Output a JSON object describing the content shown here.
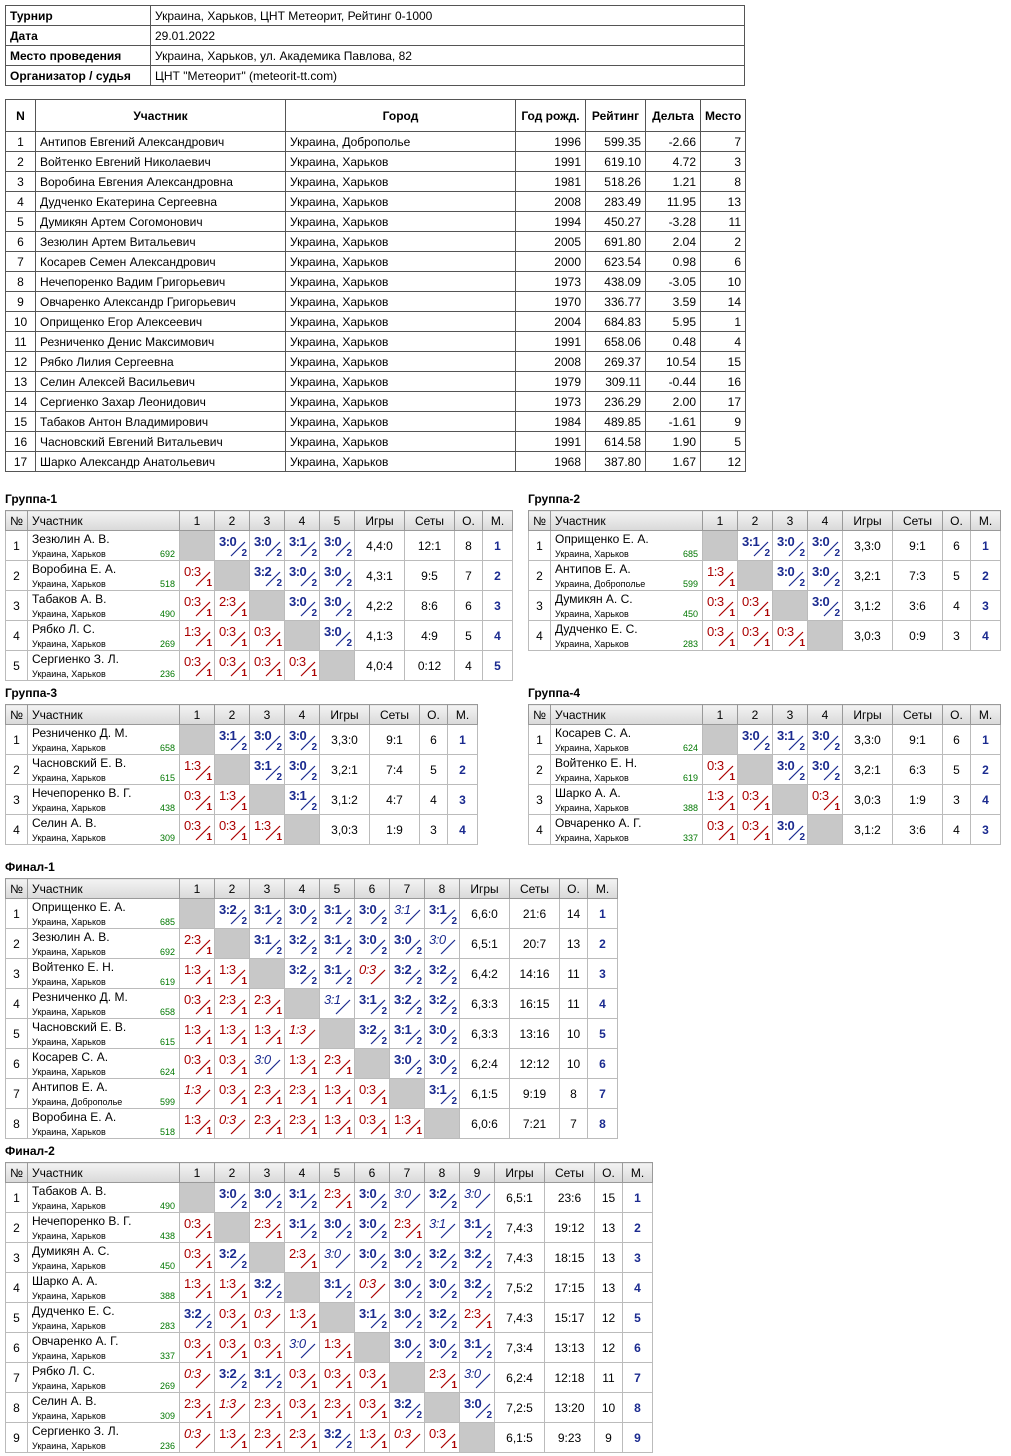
{
  "info": [
    [
      "Турнир",
      "Украина, Харьков, ЦНТ Метеорит, Рейтинг 0-1000"
    ],
    [
      "Дата",
      "29.01.2022"
    ],
    [
      "Место проведения",
      "Украина, Харьков, ул. Академика Павлова, 82"
    ],
    [
      "Организатор / судья",
      "ЦНТ \"Метеорит\" (meteorit-tt.com)"
    ]
  ],
  "participants_headers": [
    "N",
    "Участник",
    "Город",
    "Год рожд.",
    "Рейтинг",
    "Дельта",
    "Место"
  ],
  "participants": [
    [
      "1",
      "Антипов Евгений Александрович",
      "Украина, Доброполье",
      "1996",
      "599.35",
      "-2.66",
      "7"
    ],
    [
      "2",
      "Войтенко Евгений Николаевич",
      "Украина, Харьков",
      "1991",
      "619.10",
      "4.72",
      "3"
    ],
    [
      "3",
      "Воробина Евгения Александровна",
      "Украина, Харьков",
      "1981",
      "518.26",
      "1.21",
      "8"
    ],
    [
      "4",
      "Дудченко Екатерина Сергеевна",
      "Украина, Харьков",
      "2008",
      "283.49",
      "11.95",
      "13"
    ],
    [
      "5",
      "Думикян Артем Согомонович",
      "Украина, Харьков",
      "1994",
      "450.27",
      "-3.28",
      "11"
    ],
    [
      "6",
      "Зезюлин Артем Витальевич",
      "Украина, Харьков",
      "2005",
      "691.80",
      "2.04",
      "2"
    ],
    [
      "7",
      "Косарев Семен Александрович",
      "Украина, Харьков",
      "2000",
      "623.54",
      "0.98",
      "6"
    ],
    [
      "8",
      "Нечепоренко Вадим Григорьевич",
      "Украина, Харьков",
      "1973",
      "438.09",
      "-3.05",
      "10"
    ],
    [
      "9",
      "Овчаренко Александр Григорьевич",
      "Украина, Харьков",
      "1970",
      "336.77",
      "3.59",
      "14"
    ],
    [
      "10",
      "Оприщенко Егор Алексеевич",
      "Украина, Харьков",
      "2004",
      "684.83",
      "5.95",
      "1"
    ],
    [
      "11",
      "Резниченко Денис Максимович",
      "Украина, Харьков",
      "1991",
      "658.06",
      "0.48",
      "4"
    ],
    [
      "12",
      "Рябко Лилия Сергеевна",
      "Украина, Харьков",
      "2008",
      "269.37",
      "10.54",
      "15"
    ],
    [
      "13",
      "Селин Алексей Васильевич",
      "Украина, Харьков",
      "1979",
      "309.11",
      "-0.44",
      "16"
    ],
    [
      "14",
      "Сергиенко Захар Леонидович",
      "Украина, Харьков",
      "1973",
      "236.29",
      "2.00",
      "17"
    ],
    [
      "15",
      "Табаков Антон Владимирович",
      "Украина, Харьков",
      "1984",
      "489.85",
      "-1.61",
      "9"
    ],
    [
      "16",
      "Часновский Евгений Витальевич",
      "Украина, Харьков",
      "1991",
      "614.58",
      "1.90",
      "5"
    ],
    [
      "17",
      "Шарко Александр Анатольевич",
      "Украина, Харьков",
      "1968",
      "387.80",
      "1.67",
      "12"
    ]
  ],
  "group_headers": {
    "num": "№",
    "player": "Участник",
    "games": "Игры",
    "sets": "Сеты",
    "points": "О.",
    "place": "М."
  },
  "groups": [
    {
      "title": "Группа-1",
      "players": [
        {
          "name": "Зезюлин А. В.",
          "city": "Украина, Харьков",
          "rating": "692",
          "games": "4,4:0",
          "sets": "12:1",
          "points": "8",
          "place": "1",
          "res": [
            null,
            "3:0/2",
            "3:0/2",
            "3:1/2",
            "3:0/2"
          ]
        },
        {
          "name": "Воробина Е. А.",
          "city": "Украина, Харьков",
          "rating": "518",
          "games": "4,3:1",
          "sets": "9:5",
          "points": "7",
          "place": "2",
          "res": [
            "0:3/1",
            null,
            "3:2/2",
            "3:0/2",
            "3:0/2"
          ]
        },
        {
          "name": "Табаков А. В.",
          "city": "Украина, Харьков",
          "rating": "490",
          "games": "4,2:2",
          "sets": "8:6",
          "points": "6",
          "place": "3",
          "res": [
            "0:3/1",
            "2:3/1",
            null,
            "3:0/2",
            "3:0/2"
          ]
        },
        {
          "name": "Рябко Л. С.",
          "city": "Украина, Харьков",
          "rating": "269",
          "games": "4,1:3",
          "sets": "4:9",
          "points": "5",
          "place": "4",
          "res": [
            "1:3/1",
            "0:3/1",
            "0:3/1",
            null,
            "3:0/2"
          ]
        },
        {
          "name": "Сергиенко З. Л.",
          "city": "Украина, Харьков",
          "rating": "236",
          "games": "4,0:4",
          "sets": "0:12",
          "points": "4",
          "place": "5",
          "res": [
            "0:3/1",
            "0:3/1",
            "0:3/1",
            "0:3/1",
            null
          ]
        }
      ]
    },
    {
      "title": "Группа-2",
      "players": [
        {
          "name": "Оприщенко Е. А.",
          "city": "Украина, Харьков",
          "rating": "685",
          "games": "3,3:0",
          "sets": "9:1",
          "points": "6",
          "place": "1",
          "res": [
            null,
            "3:1/2",
            "3:0/2",
            "3:0/2"
          ]
        },
        {
          "name": "Антипов Е. А.",
          "city": "Украина, Доброполье",
          "rating": "599",
          "games": "3,2:1",
          "sets": "7:3",
          "points": "5",
          "place": "2",
          "res": [
            "1:3/1",
            null,
            "3:0/2",
            "3:0/2"
          ]
        },
        {
          "name": "Думикян А. С.",
          "city": "Украина, Харьков",
          "rating": "450",
          "games": "3,1:2",
          "sets": "3:6",
          "points": "4",
          "place": "3",
          "res": [
            "0:3/1",
            "0:3/1",
            null,
            "3:0/2"
          ]
        },
        {
          "name": "Дудченко Е. С.",
          "city": "Украина, Харьков",
          "rating": "283",
          "games": "3,0:3",
          "sets": "0:9",
          "points": "3",
          "place": "4",
          "res": [
            "0:3/1",
            "0:3/1",
            "0:3/1",
            null
          ]
        }
      ]
    },
    {
      "title": "Группа-3",
      "players": [
        {
          "name": "Резниченко Д. М.",
          "city": "Украина, Харьков",
          "rating": "658",
          "games": "3,3:0",
          "sets": "9:1",
          "points": "6",
          "place": "1",
          "res": [
            null,
            "3:1/2",
            "3:0/2",
            "3:0/2"
          ]
        },
        {
          "name": "Часновский Е. В.",
          "city": "Украина, Харьков",
          "rating": "615",
          "games": "3,2:1",
          "sets": "7:4",
          "points": "5",
          "place": "2",
          "res": [
            "1:3/1",
            null,
            "3:1/2",
            "3:0/2"
          ]
        },
        {
          "name": "Нечепоренко В. Г.",
          "city": "Украина, Харьков",
          "rating": "438",
          "games": "3,1:2",
          "sets": "4:7",
          "points": "4",
          "place": "3",
          "res": [
            "0:3/1",
            "1:3/1",
            null,
            "3:1/2"
          ]
        },
        {
          "name": "Селин А. В.",
          "city": "Украина, Харьков",
          "rating": "309",
          "games": "3,0:3",
          "sets": "1:9",
          "points": "3",
          "place": "4",
          "res": [
            "0:3/1",
            "0:3/1",
            "1:3/1",
            null
          ]
        }
      ]
    },
    {
      "title": "Группа-4",
      "players": [
        {
          "name": "Косарев С. А.",
          "city": "Украина, Харьков",
          "rating": "624",
          "games": "3,3:0",
          "sets": "9:1",
          "points": "6",
          "place": "1",
          "res": [
            null,
            "3:0/2",
            "3:1/2",
            "3:0/2"
          ]
        },
        {
          "name": "Войтенко Е. Н.",
          "city": "Украина, Харьков",
          "rating": "619",
          "games": "3,2:1",
          "sets": "6:3",
          "points": "5",
          "place": "2",
          "res": [
            "0:3/1",
            null,
            "3:0/2",
            "3:0/2"
          ]
        },
        {
          "name": "Шарко А. А.",
          "city": "Украина, Харьков",
          "rating": "388",
          "games": "3,0:3",
          "sets": "1:9",
          "points": "3",
          "place": "4",
          "res": [
            "1:3/1",
            "0:3/1",
            null,
            "0:3/1"
          ]
        },
        {
          "name": "Овчаренко А. Г.",
          "city": "Украина, Харьков",
          "rating": "337",
          "games": "3,1:2",
          "sets": "3:6",
          "points": "4",
          "place": "3",
          "res": [
            "0:3/1",
            "0:3/1",
            "3:0/2",
            null
          ]
        }
      ]
    },
    {
      "title": "Финал-1",
      "players": [
        {
          "name": "Оприщенко Е. А.",
          "city": "Украина, Харьков",
          "rating": "685",
          "games": "6,6:0",
          "sets": "21:6",
          "points": "14",
          "place": "1",
          "res": [
            null,
            "3:2/2",
            "3:1/2",
            "3:0/2",
            "3:1/2",
            "3:0/2",
            "3:1/t",
            "3:1/2"
          ]
        },
        {
          "name": "Зезюлин А. В.",
          "city": "Украина, Харьков",
          "rating": "692",
          "games": "6,5:1",
          "sets": "20:7",
          "points": "13",
          "place": "2",
          "res": [
            "2:3/1",
            null,
            "3:1/2",
            "3:2/2",
            "3:1/2",
            "3:0/2",
            "3:0/2",
            "3:0/t"
          ]
        },
        {
          "name": "Войтенко Е. Н.",
          "city": "Украина, Харьков",
          "rating": "619",
          "games": "6,4:2",
          "sets": "14:16",
          "points": "11",
          "place": "3",
          "res": [
            "1:3/1",
            "1:3/1",
            null,
            "3:2/2",
            "3:1/2",
            "0:3/tl",
            "3:2/2",
            "3:2/2"
          ]
        },
        {
          "name": "Резниченко Д. М.",
          "city": "Украина, Харьков",
          "rating": "658",
          "games": "6,3:3",
          "sets": "16:15",
          "points": "11",
          "place": "4",
          "res": [
            "0:3/1",
            "2:3/1",
            "2:3/1",
            null,
            "3:1/t",
            "3:1/2",
            "3:2/2",
            "3:2/2"
          ]
        },
        {
          "name": "Часновский Е. В.",
          "city": "Украина, Харьков",
          "rating": "615",
          "games": "6,3:3",
          "sets": "13:16",
          "points": "10",
          "place": "5",
          "res": [
            "1:3/1",
            "1:3/1",
            "1:3/1",
            "1:3/tl",
            null,
            "3:2/2",
            "3:1/2",
            "3:0/2"
          ]
        },
        {
          "name": "Косарев С. А.",
          "city": "Украина, Харьков",
          "rating": "624",
          "games": "6,2:4",
          "sets": "12:12",
          "points": "10",
          "place": "6",
          "res": [
            "0:3/1",
            "0:3/1",
            "3:0/t",
            "1:3/1",
            "2:3/1",
            null,
            "3:0/2",
            "3:0/2"
          ]
        },
        {
          "name": "Антипов Е. А.",
          "city": "Украина, Доброполье",
          "rating": "599",
          "games": "6,1:5",
          "sets": "9:19",
          "points": "8",
          "place": "7",
          "res": [
            "1:3/tl",
            "0:3/1",
            "2:3/1",
            "2:3/1",
            "1:3/1",
            "0:3/1",
            null,
            "3:1/2"
          ]
        },
        {
          "name": "Воробина Е. А.",
          "city": "Украина, Харьков",
          "rating": "518",
          "games": "6,0:6",
          "sets": "7:21",
          "points": "7",
          "place": "8",
          "res": [
            "1:3/1",
            "0:3/tl",
            "2:3/1",
            "2:3/1",
            "1:3/1",
            "0:3/1",
            "1:3/1",
            null
          ]
        }
      ]
    },
    {
      "title": "Финал-2",
      "players": [
        {
          "name": "Табаков А. В.",
          "city": "Украина, Харьков",
          "rating": "490",
          "games": "6,5:1",
          "sets": "23:6",
          "points": "15",
          "place": "1",
          "res": [
            null,
            "3:0/2",
            "3:0/2",
            "3:1/2",
            "2:3/1",
            "3:0/2",
            "3:0/t",
            "3:2/2",
            "3:0/t"
          ]
        },
        {
          "name": "Нечепоренко В. Г.",
          "city": "Украина, Харьков",
          "rating": "438",
          "games": "7,4:3",
          "sets": "19:12",
          "points": "13",
          "place": "2",
          "res": [
            "0:3/1",
            null,
            "2:3/1",
            "3:1/2",
            "3:0/2",
            "3:0/2",
            "2:3/1",
            "3:1/t",
            "3:1/2"
          ]
        },
        {
          "name": "Думикян А. С.",
          "city": "Украина, Харьков",
          "rating": "450",
          "games": "7,4:3",
          "sets": "18:15",
          "points": "13",
          "place": "3",
          "res": [
            "0:3/1",
            "3:2/2",
            null,
            "2:3/1",
            "3:0/t",
            "3:0/2",
            "3:0/2",
            "3:2/2",
            "3:2/2"
          ]
        },
        {
          "name": "Шарко А. А.",
          "city": "Украина, Харьков",
          "rating": "388",
          "games": "7,5:2",
          "sets": "17:15",
          "points": "13",
          "place": "4",
          "res": [
            "1:3/1",
            "1:3/1",
            "3:2/2",
            null,
            "3:1/2",
            "0:3/tl",
            "3:0/2",
            "3:0/2",
            "3:2/2"
          ]
        },
        {
          "name": "Дудченко Е. С.",
          "city": "Украина, Харьков",
          "rating": "283",
          "games": "7,4:3",
          "sets": "15:17",
          "points": "12",
          "place": "5",
          "res": [
            "3:2/2",
            "0:3/1",
            "0:3/tl",
            "1:3/1",
            null,
            "3:1/2",
            "3:0/2",
            "3:2/2",
            "2:3/1"
          ]
        },
        {
          "name": "Овчаренко А. Г.",
          "city": "Украина, Харьков",
          "rating": "337",
          "games": "7,3:4",
          "sets": "13:13",
          "points": "12",
          "place": "6",
          "res": [
            "0:3/1",
            "0:3/1",
            "0:3/1",
            "3:0/t",
            "1:3/1",
            null,
            "3:0/2",
            "3:0/2",
            "3:1/2"
          ]
        },
        {
          "name": "Рябко Л. С.",
          "city": "Украина, Харьков",
          "rating": "269",
          "games": "6,2:4",
          "sets": "12:18",
          "points": "11",
          "place": "7",
          "res": [
            "0:3/tl",
            "3:2/2",
            "3:1/2",
            "0:3/1",
            "0:3/1",
            "0:3/1",
            null,
            "2:3/1",
            "3:0/t"
          ]
        },
        {
          "name": "Селин А. В.",
          "city": "Украина, Харьков",
          "rating": "309",
          "games": "7,2:5",
          "sets": "13:20",
          "points": "10",
          "place": "8",
          "res": [
            "2:3/1",
            "1:3/tl",
            "2:3/1",
            "0:3/1",
            "2:3/1",
            "0:3/1",
            "3:2/2",
            null,
            "3:0/2"
          ]
        },
        {
          "name": "Сергиенко З. Л.",
          "city": "Украина, Харьков",
          "rating": "236",
          "games": "6,1:5",
          "sets": "9:23",
          "points": "9",
          "place": "9",
          "res": [
            "0:3/tl",
            "1:3/1",
            "2:3/1",
            "2:3/1",
            "3:2/2",
            "1:3/1",
            "0:3/tl",
            "0:3/1",
            null
          ]
        }
      ]
    }
  ]
}
